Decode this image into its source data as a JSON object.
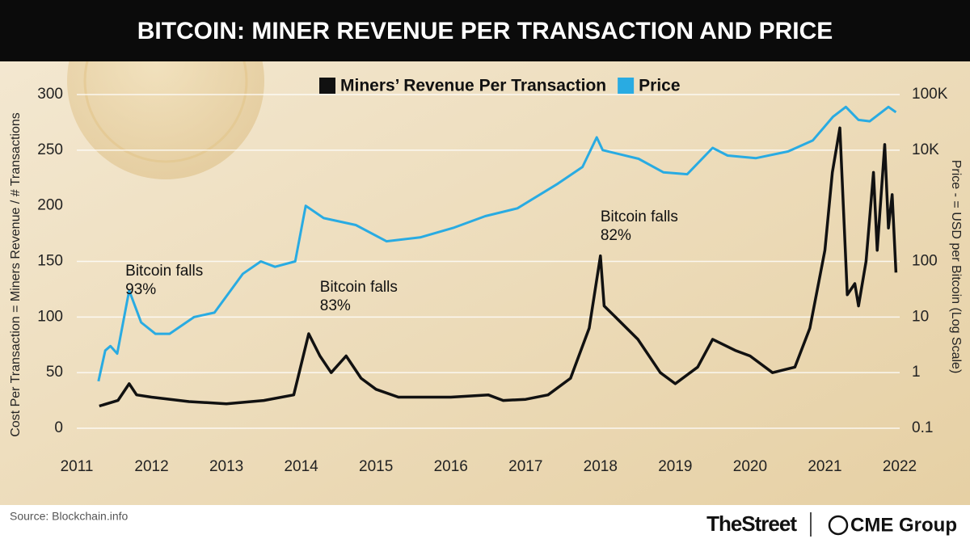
{
  "chart_data": {
    "type": "line",
    "title": "BITCOIN: MINER REVENUE PER TRANSACTION AND PRICE",
    "y_label": "Cost Per Transaction = Miners Revenue / # Transactions",
    "y2_label": "Price - = USD per Bitcoin (Log Scale)",
    "source": "Source: Blockchain.info",
    "branding": [
      "TheStreet",
      "CME Group"
    ],
    "annotations": [
      {
        "text": "Bitcoin falls 93%",
        "x": 2011.65,
        "y": 150
      },
      {
        "text": "Bitcoin falls 83%",
        "x": 2014.25,
        "y": 135
      },
      {
        "text": "Bitcoin falls 82%",
        "x": 2018.0,
        "y": 198
      }
    ],
    "xlim": [
      2011,
      2022
    ],
    "xticks": [
      2011,
      2012,
      2013,
      2014,
      2015,
      2016,
      2017,
      2018,
      2019,
      2020,
      2021,
      2022
    ],
    "ylim": [
      0,
      300
    ],
    "yticks": [
      0,
      50,
      100,
      150,
      200,
      250,
      300
    ],
    "y2lim": [
      0.1,
      100000
    ],
    "y2_log": true,
    "y2ticks": [
      0.1,
      1,
      10,
      100,
      {
        "value": 10000,
        "label": "10K"
      },
      {
        "value": 100000,
        "label": "100K"
      }
    ],
    "grid": "y2",
    "series": [
      {
        "name": "Miners’ Revenue Per Transaction",
        "color": "#111111",
        "axis": "y",
        "x": [
          2011.3,
          2011.55,
          2011.7,
          2011.8,
          2012.0,
          2012.5,
          2013.0,
          2013.5,
          2013.9,
          2014.1,
          2014.25,
          2014.4,
          2014.6,
          2014.8,
          2015.0,
          2015.3,
          2016.0,
          2016.5,
          2016.7,
          2017.0,
          2017.3,
          2017.6,
          2017.85,
          2018.0,
          2018.05,
          2018.2,
          2018.5,
          2018.8,
          2019.0,
          2019.3,
          2019.5,
          2019.8,
          2020.0,
          2020.3,
          2020.6,
          2020.8,
          2021.0,
          2021.1,
          2021.2,
          2021.3,
          2021.4,
          2021.45,
          2021.55,
          2021.65,
          2021.7,
          2021.8,
          2021.85,
          2021.9,
          2021.95
        ],
        "values": [
          20,
          25,
          40,
          30,
          28,
          24,
          22,
          25,
          30,
          85,
          65,
          50,
          65,
          45,
          35,
          28,
          28,
          30,
          25,
          26,
          30,
          45,
          90,
          155,
          110,
          100,
          80,
          50,
          40,
          55,
          80,
          70,
          65,
          50,
          55,
          90,
          160,
          230,
          270,
          120,
          130,
          110,
          150,
          230,
          160,
          255,
          180,
          210,
          140
        ]
      },
      {
        "name": "Price",
        "color": "#29abe2",
        "axis": "y2",
        "x": [
          2011.29,
          2011.38,
          2011.45,
          2011.54,
          2011.7,
          2011.86,
          2012.05,
          2012.24,
          2012.57,
          2012.84,
          2013.22,
          2013.46,
          2013.65,
          2013.92,
          2014.06,
          2014.3,
          2014.73,
          2015.14,
          2015.59,
          2016.03,
          2016.46,
          2016.89,
          2017.43,
          2017.76,
          2017.95,
          2018.03,
          2018.51,
          2018.84,
          2019.16,
          2019.5,
          2019.7,
          2020.08,
          2020.51,
          2020.84,
          2021.11,
          2021.28,
          2021.45,
          2021.6,
          2021.85,
          2021.95
        ],
        "values": [
          0.7,
          2.5,
          3,
          2.2,
          30,
          8,
          5,
          5,
          10,
          12,
          60,
          100,
          80,
          100,
          1000,
          600,
          450,
          230,
          270,
          400,
          650,
          900,
          2500,
          5000,
          17000,
          10000,
          7000,
          4000,
          3700,
          11000,
          8000,
          7200,
          9500,
          15000,
          40000,
          60000,
          35000,
          33000,
          60000,
          48000
        ]
      }
    ]
  }
}
